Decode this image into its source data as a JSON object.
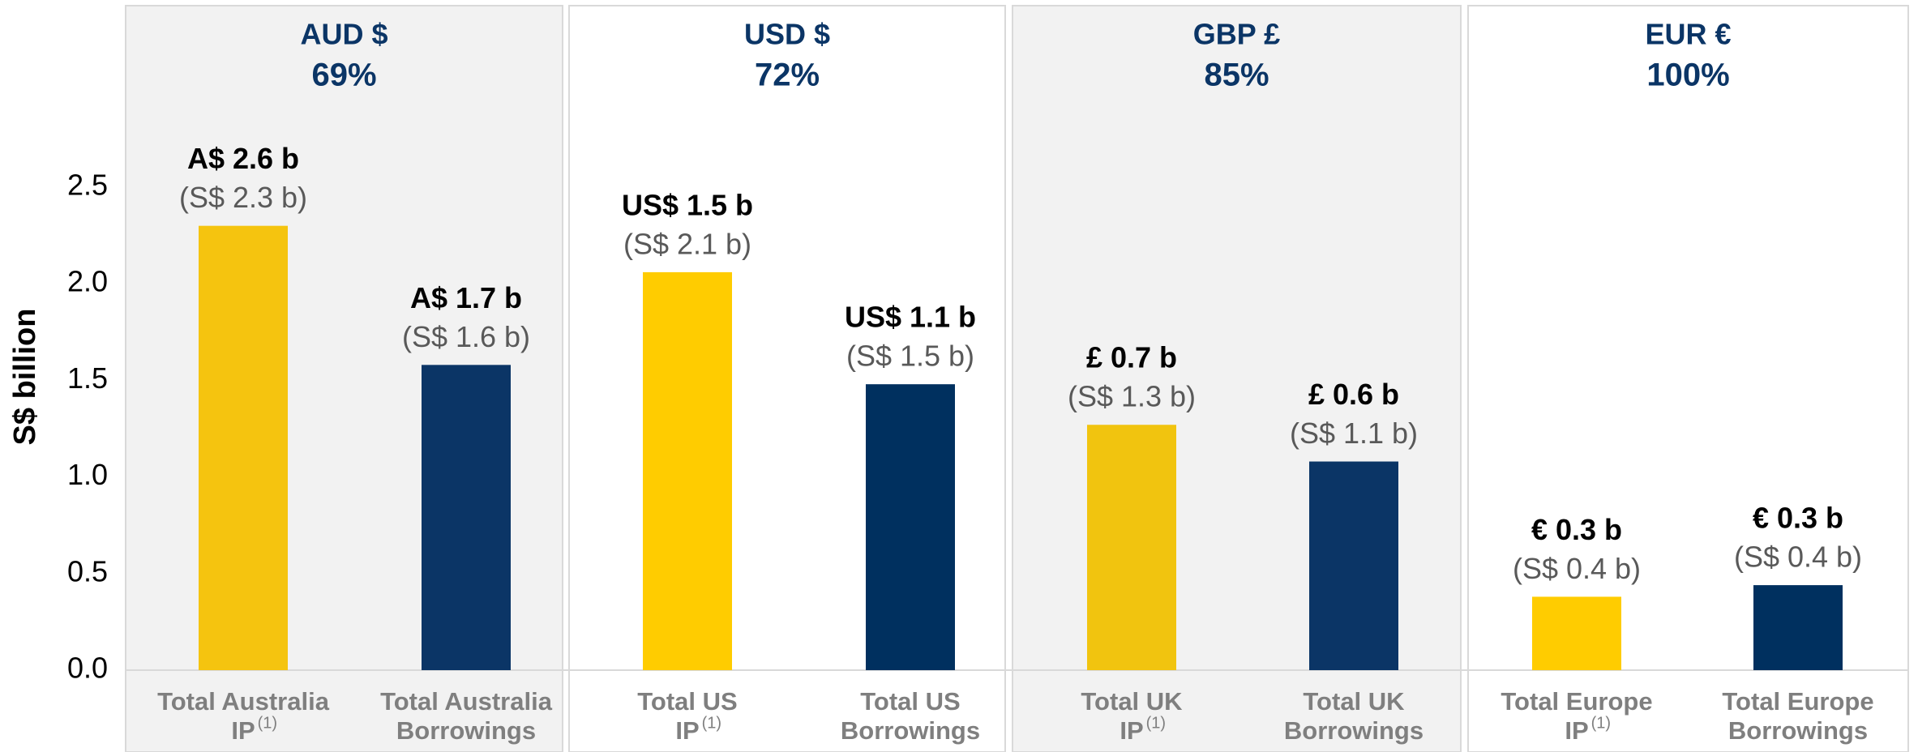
{
  "chart_data": {
    "type": "bar",
    "ylabel": "S$ billion",
    "groups": [
      {
        "currency": "AUD $",
        "hedge": "69%"
      },
      {
        "currency": "USD $",
        "hedge": "72%"
      },
      {
        "currency": "GBP £",
        "hedge": "85%"
      },
      {
        "currency": "EUR €",
        "hedge": "100%"
      }
    ],
    "categories": [
      [
        "Total Australia",
        "IP"
      ],
      [
        "Total Australia",
        "Borrowings"
      ],
      [
        "Total US",
        "IP"
      ],
      [
        "Total US",
        "Borrowings"
      ],
      [
        "Total UK",
        "IP"
      ],
      [
        "Total UK",
        "Borrowings"
      ],
      [
        "Total Europe",
        "IP"
      ],
      [
        "Total Europe",
        "Borrowings"
      ]
    ],
    "footnote_marker": "(1)",
    "values": [
      2.3,
      1.58,
      2.06,
      1.48,
      1.27,
      1.08,
      0.38,
      0.44
    ],
    "value_labels": [
      "(S$ 2.3 b)",
      "(S$ 1.6 b)",
      "(S$ 2.1 b)",
      "(S$ 1.5 b)",
      "(S$ 1.3 b)",
      "(S$ 1.1 b)",
      "(S$ 0.4 b)",
      "(S$ 0.4 b)"
    ],
    "native_labels": [
      "A$ 2.6 b",
      "A$ 1.7 b",
      "US$ 1.5 b",
      "US$ 1.1 b",
      "£ 0.7 b",
      "£ 0.6 b",
      "€ 0.3 b",
      "€ 0.3 b"
    ],
    "colors": [
      "#F5C40F",
      "#0B3566",
      "#FFCC00",
      "#00305F",
      "#F1C40F",
      "#0B3566",
      "#FFCC00",
      "#00305F"
    ],
    "ylim": [
      0,
      2.5
    ],
    "yticks": [
      {
        "value": 0,
        "label": "0.0"
      },
      0.5,
      {
        "value": 1,
        "label": "1.0"
      },
      1.5,
      {
        "value": 2,
        "label": "2.0"
      },
      2.5
    ]
  }
}
